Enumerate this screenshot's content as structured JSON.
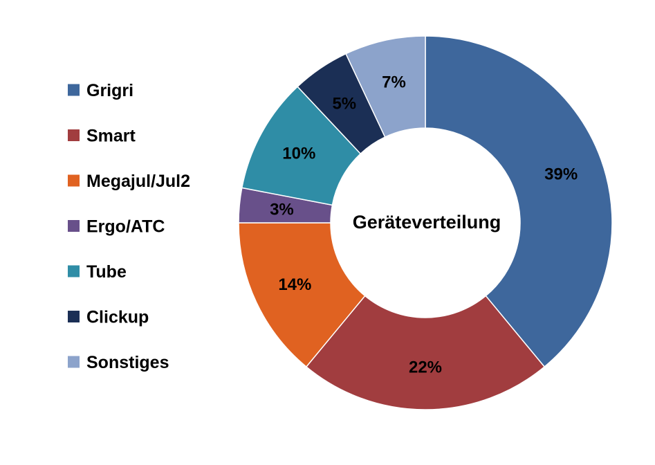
{
  "chart_data": {
    "type": "pie",
    "variant": "donut",
    "center_label": "Geräteverteilung",
    "legend_position": "left",
    "categories": [
      "Grigri",
      "Smart",
      "Megajul/Jul2",
      "Ergo/ATC",
      "Tube",
      "Clickup",
      "Sonstiges"
    ],
    "values": [
      39,
      22,
      14,
      3,
      10,
      5,
      7
    ],
    "value_labels": [
      "39%",
      "22%",
      "14%",
      "3%",
      "10%",
      "5%",
      "7%"
    ],
    "colors": [
      "#3E679C",
      "#A13D3F",
      "#E06221",
      "#68508A",
      "#2F8DA6",
      "#1B2F55",
      "#8CA3CB"
    ]
  }
}
